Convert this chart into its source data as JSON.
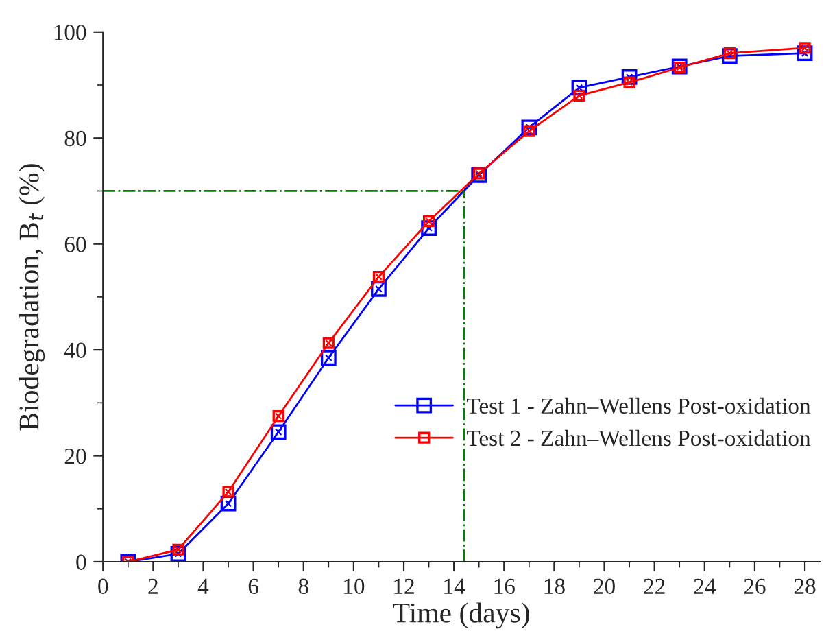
{
  "chart_data": {
    "type": "line",
    "xlabel": "Time (days)",
    "ylabel": "Biodegradation, B$_{t}$ (%)",
    "x": [
      1,
      3,
      5,
      7,
      9,
      11,
      13,
      15,
      17,
      19,
      21,
      23,
      25,
      28
    ],
    "series": [
      {
        "name": "Test 1 - Zahn–Wellens Post-oxidation",
        "color": "#0000ff",
        "values": [
          0,
          1.5,
          11,
          24.5,
          38.5,
          51.5,
          63,
          73,
          82,
          89.5,
          91.5,
          93.5,
          95.5,
          96
        ]
      },
      {
        "name": "Test 2 - Zahn–Wellens Post-oxidation",
        "color": "#ff0000",
        "values": [
          0,
          2.3,
          13.2,
          27.5,
          41.3,
          53.8,
          64.3,
          73.3,
          81.3,
          88,
          90.5,
          93.3,
          96,
          97
        ]
      }
    ],
    "xlim": [
      0,
      28.6
    ],
    "ylim": [
      0,
      100
    ],
    "xticks": [
      0,
      2,
      4,
      6,
      8,
      10,
      12,
      14,
      16,
      18,
      20,
      22,
      24,
      26,
      28
    ],
    "yticks": [
      0,
      20,
      40,
      60,
      80,
      100
    ],
    "ref_lines": [
      {
        "axis": "y",
        "value": 70,
        "color": "#008000",
        "line_style": "dashdot"
      },
      {
        "axis": "x",
        "value": 14.4,
        "color": "#008000",
        "line_style": "dashdot"
      }
    ],
    "marker": "square",
    "line_style": "solid",
    "grid": false,
    "legend": "right"
  }
}
